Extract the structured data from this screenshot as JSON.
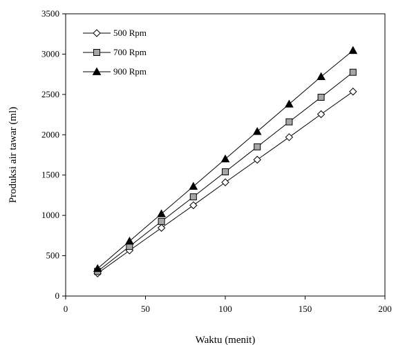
{
  "chart_data": {
    "type": "line",
    "xlabel": "Waktu (menit)",
    "ylabel": "Produksi air tawar (ml)",
    "xlim": [
      0,
      200
    ],
    "ylim": [
      0,
      3500
    ],
    "xticks": [
      "0",
      "50",
      "100",
      "150",
      "200"
    ],
    "yticks": [
      "0",
      "500",
      "1000",
      "1500",
      "2000",
      "2500",
      "3000",
      "3500"
    ],
    "grid": false,
    "legend_position": "top-left",
    "x": [
      20,
      40,
      60,
      80,
      100,
      120,
      140,
      160,
      180
    ],
    "series": [
      {
        "name": "500 Rpm",
        "marker": "diamond-open",
        "values": [
          280,
          565,
          845,
          1125,
          1410,
          1690,
          1970,
          2255,
          2535
        ]
      },
      {
        "name": "700 Rpm",
        "marker": "square-gray",
        "values": [
          305,
          615,
          925,
          1230,
          1540,
          1850,
          2160,
          2465,
          2775
        ]
      },
      {
        "name": "900 Rpm",
        "marker": "triangle-black",
        "values": [
          340,
          680,
          1020,
          1360,
          1700,
          2040,
          2380,
          2720,
          3045
        ]
      }
    ]
  },
  "colors": {
    "line": "#000000",
    "square_fill": "#a6a6a6",
    "triangle_fill": "#000000"
  }
}
